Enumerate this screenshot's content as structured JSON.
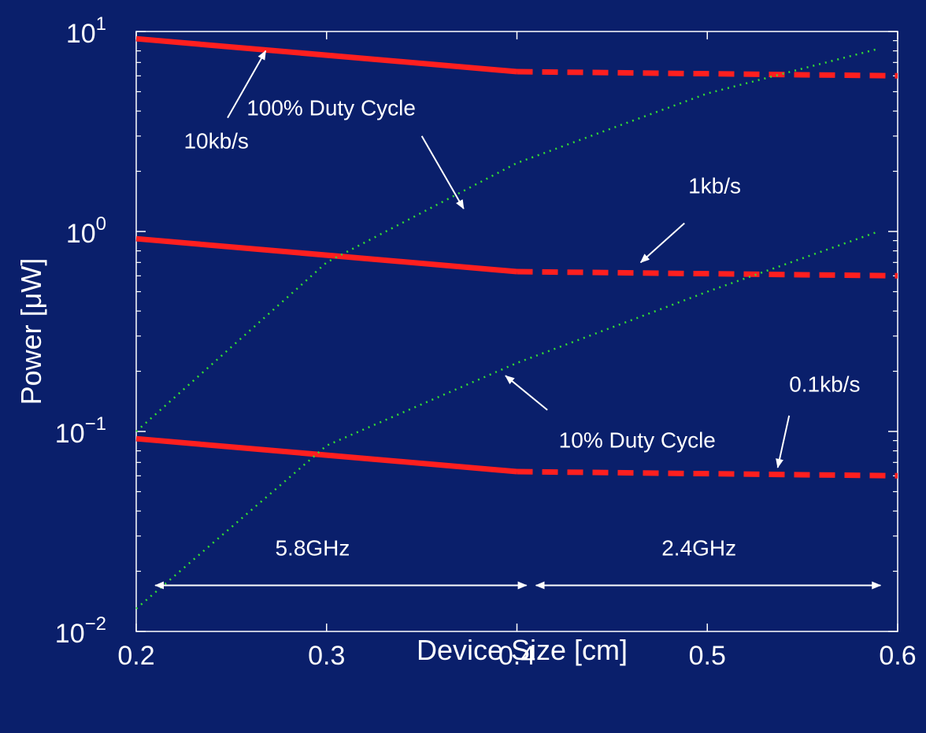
{
  "colors": {
    "background": "#0a1f6b",
    "axes": "#ffffff",
    "power_curves": "#ff1f1f",
    "duty_cycle_curves": "#33dd33",
    "annotation": "#ffffff"
  },
  "chart_data": {
    "type": "line",
    "xlabel": "Device Size [cm]",
    "ylabel": "Power  [μW]",
    "xlim": [
      0.2,
      0.6
    ],
    "ylim": [
      0.01,
      10
    ],
    "yscale": "log",
    "grid": false,
    "legend": "none",
    "xticks": [
      "0.2",
      "0.3",
      "0.4",
      "0.5",
      "0.6"
    ],
    "yticks": [
      {
        "value": 10,
        "base": "10",
        "exp": "1"
      },
      {
        "value": 1,
        "base": "10",
        "exp": "0"
      },
      {
        "value": 0.1,
        "base": "10",
        "exp": "−1"
      },
      {
        "value": 0.01,
        "base": "10",
        "exp": "−2"
      }
    ],
    "series": [
      {
        "name": "10kb/s",
        "style": "solid",
        "x": [
          0.2,
          0.4
        ],
        "y": [
          9.2,
          6.3
        ]
      },
      {
        "name": "10kb/s",
        "style": "dashed",
        "x": [
          0.4,
          0.6
        ],
        "y": [
          6.3,
          6.0
        ]
      },
      {
        "name": "1kb/s",
        "style": "solid",
        "x": [
          0.2,
          0.4
        ],
        "y": [
          0.92,
          0.63
        ]
      },
      {
        "name": "1kb/s",
        "style": "dashed",
        "x": [
          0.4,
          0.6
        ],
        "y": [
          0.63,
          0.6
        ]
      },
      {
        "name": "0.1kb/s",
        "style": "solid",
        "x": [
          0.2,
          0.4
        ],
        "y": [
          0.092,
          0.063
        ]
      },
      {
        "name": "0.1kb/s",
        "style": "dashed",
        "x": [
          0.4,
          0.6
        ],
        "y": [
          0.063,
          0.06
        ]
      },
      {
        "name": "100% Duty Cycle",
        "style": "dotted",
        "x": [
          0.2,
          0.3,
          0.4,
          0.5,
          0.59
        ],
        "y": [
          0.1,
          0.7,
          2.2,
          4.9,
          8.2
        ]
      },
      {
        "name": "10% Duty Cycle",
        "style": "dotted",
        "x": [
          0.2,
          0.3,
          0.4,
          0.5,
          0.59
        ],
        "y": [
          0.013,
          0.085,
          0.22,
          0.5,
          1.0
        ]
      }
    ],
    "annotations": [
      {
        "text": "10kb/s",
        "x": 0.225,
        "y": 2.6,
        "arrow_from": [
          0.248,
          3.7
        ],
        "arrow_to": [
          0.268,
          8.0
        ]
      },
      {
        "text": "100% Duty Cycle",
        "x": 0.258,
        "y": 3.8,
        "arrow_from": [
          0.35,
          3.0
        ],
        "arrow_to": [
          0.372,
          1.3
        ]
      },
      {
        "text": "1kb/s",
        "x": 0.49,
        "y": 1.55,
        "arrow_from": [
          0.488,
          1.1
        ],
        "arrow_to": [
          0.465,
          0.7
        ]
      },
      {
        "text": "0.1kb/s",
        "x": 0.543,
        "y": 0.158,
        "arrow_from": [
          0.543,
          0.12
        ],
        "arrow_to": [
          0.537,
          0.066
        ]
      },
      {
        "text": "10% Duty Cycle",
        "x": 0.422,
        "y": 0.083,
        "arrow_from": [
          0.416,
          0.128
        ],
        "arrow_to": [
          0.394,
          0.19
        ]
      },
      {
        "text": "5.8GHz",
        "x": 0.273,
        "y": 0.024,
        "arrow_from": [
          0.21,
          0.017
        ],
        "arrow_to": [
          0.405,
          0.017
        ],
        "double": true
      },
      {
        "text": "2.4GHz",
        "x": 0.476,
        "y": 0.024,
        "arrow_from": [
          0.41,
          0.017
        ],
        "arrow_to": [
          0.591,
          0.017
        ],
        "double": true
      }
    ]
  }
}
